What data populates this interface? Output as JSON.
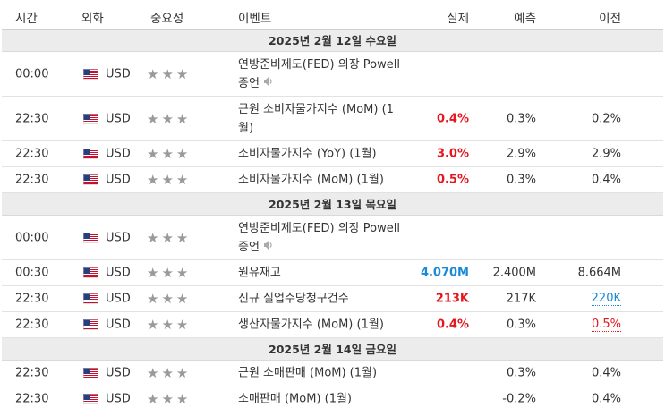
{
  "header": {
    "time": "시간",
    "currency": "외화",
    "importance": "중요성",
    "event": "이벤트",
    "actual": "실제",
    "forecast": "예측",
    "previous": "이전"
  },
  "colors": {
    "bad": "#e5161e",
    "good": "#1a8ad8",
    "date_bg": "#ececec",
    "star": "#9a9a9a"
  },
  "days": [
    {
      "date": "2025년 2월 12일 수요일",
      "events": [
        {
          "time": "00:00",
          "currency": "USD",
          "flag_icon": "us-flag-icon",
          "importance": 3,
          "event_line1": "연방준비제도(FED) 의장 Powell",
          "event_line2": "증언",
          "speech": true,
          "actual": "",
          "actual_color": "",
          "forecast": "",
          "previous": "",
          "previous_style": ""
        },
        {
          "time": "22:30",
          "currency": "USD",
          "flag_icon": "us-flag-icon",
          "importance": 3,
          "event_line1": "근원 소비자물가지수 (MoM) (1",
          "event_line2": "월)",
          "speech": false,
          "actual": "0.4%",
          "actual_color": "red",
          "forecast": "0.3%",
          "previous": "0.2%",
          "previous_style": ""
        },
        {
          "time": "22:30",
          "currency": "USD",
          "flag_icon": "us-flag-icon",
          "importance": 3,
          "event_line1": "소비자물가지수 (YoY) (1월)",
          "event_line2": "",
          "speech": false,
          "actual": "3.0%",
          "actual_color": "red",
          "forecast": "2.9%",
          "previous": "2.9%",
          "previous_style": ""
        },
        {
          "time": "22:30",
          "currency": "USD",
          "flag_icon": "us-flag-icon",
          "importance": 3,
          "event_line1": "소비자물가지수 (MoM) (1월)",
          "event_line2": "",
          "speech": false,
          "actual": "0.5%",
          "actual_color": "red",
          "forecast": "0.3%",
          "previous": "0.4%",
          "previous_style": ""
        }
      ]
    },
    {
      "date": "2025년 2월 13일 목요일",
      "events": [
        {
          "time": "00:00",
          "currency": "USD",
          "flag_icon": "us-flag-icon",
          "importance": 3,
          "event_line1": "연방준비제도(FED) 의장 Powell",
          "event_line2": "증언",
          "speech": true,
          "actual": "",
          "actual_color": "",
          "forecast": "",
          "previous": "",
          "previous_style": ""
        },
        {
          "time": "00:30",
          "currency": "USD",
          "flag_icon": "us-flag-icon",
          "importance": 3,
          "event_line1": "원유재고",
          "event_line2": "",
          "speech": false,
          "actual": "4.070M",
          "actual_color": "blue",
          "forecast": "2.400M",
          "previous": "8.664M",
          "previous_style": ""
        },
        {
          "time": "22:30",
          "currency": "USD",
          "flag_icon": "us-flag-icon",
          "importance": 3,
          "event_line1": "신규 실업수당청구건수",
          "event_line2": "",
          "speech": false,
          "actual": "213K",
          "actual_color": "red",
          "forecast": "217K",
          "previous": "220K",
          "previous_style": "revised-up"
        },
        {
          "time": "22:30",
          "currency": "USD",
          "flag_icon": "us-flag-icon",
          "importance": 3,
          "event_line1": "생산자물가지수 (MoM) (1월)",
          "event_line2": "",
          "speech": false,
          "actual": "0.4%",
          "actual_color": "red",
          "forecast": "0.3%",
          "previous": "0.5%",
          "previous_style": "revised-down"
        }
      ]
    },
    {
      "date": "2025년 2월 14일 금요일",
      "events": [
        {
          "time": "22:30",
          "currency": "USD",
          "flag_icon": "us-flag-icon",
          "importance": 3,
          "event_line1": "근원 소매판매 (MoM) (1월)",
          "event_line2": "",
          "speech": false,
          "actual": "",
          "actual_color": "",
          "forecast": "0.3%",
          "previous": "0.4%",
          "previous_style": ""
        },
        {
          "time": "22:30",
          "currency": "USD",
          "flag_icon": "us-flag-icon",
          "importance": 3,
          "event_line1": "소매판매 (MoM) (1월)",
          "event_line2": "",
          "speech": false,
          "actual": "",
          "actual_color": "",
          "forecast": "-0.2%",
          "previous": "0.4%",
          "previous_style": ""
        }
      ]
    }
  ]
}
